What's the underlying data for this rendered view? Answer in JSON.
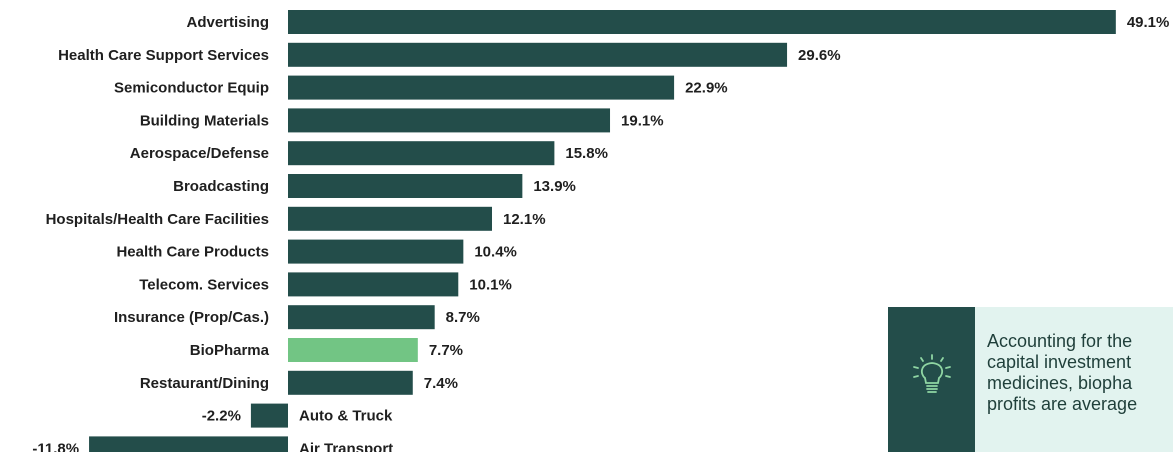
{
  "colors": {
    "bar_default": "#234d4a",
    "bar_highlight": "#72c584",
    "callout_dark": "#234d4a",
    "callout_light": "#e2f3ef",
    "icon_stroke": "#8fd6a3"
  },
  "callout": {
    "icon": "lightbulb-icon",
    "text": "Accounting for the\ncapital investment\nmedicines, biopha\nprofits are average"
  },
  "chart_data": {
    "type": "bar",
    "orientation": "horizontal",
    "title": "",
    "xlabel": "",
    "ylabel": "",
    "xlim": [
      -11.8,
      49.1
    ],
    "grid": false,
    "highlight": "BioPharma",
    "categories": [
      "Advertising",
      "Health Care Support Services",
      "Semiconductor Equip",
      "Building Materials",
      "Aerospace/Defense",
      "Broadcasting",
      "Hospitals/Health Care Facilities",
      "Health Care Products",
      "Telecom. Services",
      "Insurance (Prop/Cas.)",
      "BioPharma",
      "Restaurant/Dining",
      "Auto & Truck",
      "Air Transport"
    ],
    "values": [
      49.1,
      29.6,
      22.9,
      19.1,
      15.8,
      13.9,
      12.1,
      10.4,
      10.1,
      8.7,
      7.7,
      7.4,
      -2.2,
      -11.8
    ],
    "value_labels": [
      "49.1%",
      "29.6%",
      "22.9%",
      "19.1%",
      "15.8%",
      "13.9%",
      "12.1%",
      "10.4%",
      "10.1%",
      "8.7%",
      "7.7%",
      "7.4%",
      "-2.2%",
      "-11.8%"
    ]
  }
}
